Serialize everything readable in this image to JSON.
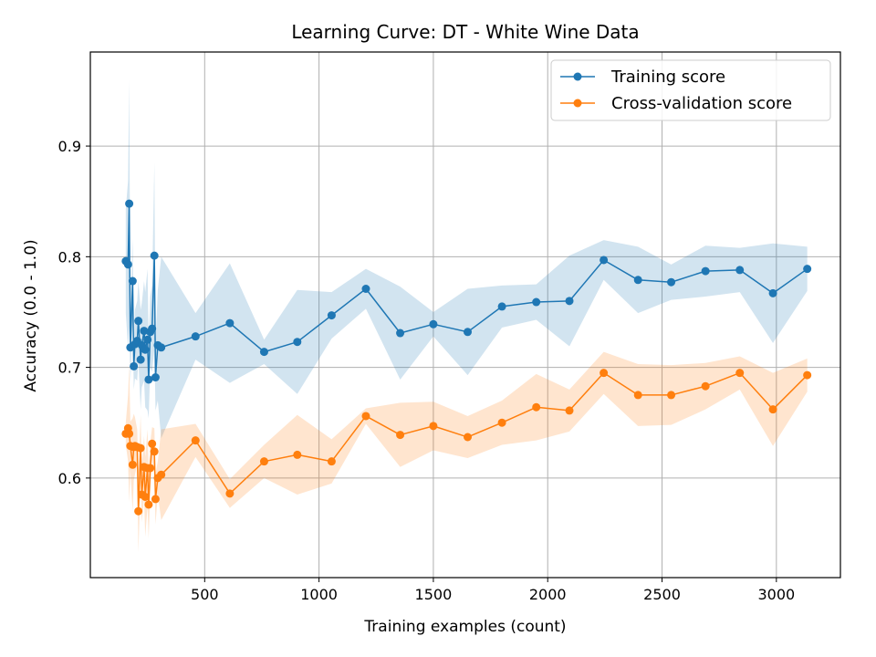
{
  "chart_data": {
    "type": "line",
    "title": "Learning Curve: DT - White Wine Data",
    "xlabel": "Training examples (count)",
    "ylabel": "Accuracy (0.0 - 1.0)",
    "xlim": [
      0,
      3280
    ],
    "ylim": [
      0.51,
      0.985
    ],
    "xticks": [
      500,
      1000,
      1500,
      2000,
      2500,
      3000
    ],
    "yticks": [
      0.6,
      0.7,
      0.8,
      0.9
    ],
    "grid": true,
    "legend_position": "upper-right",
    "series": [
      {
        "name": "Training score",
        "color": "#1f77b4",
        "points": [
          [
            155,
            0.796,
            0.749,
            0.843
          ],
          [
            165,
            0.793,
            0.717,
            0.869
          ],
          [
            170,
            0.848,
            0.736,
            0.96
          ],
          [
            175,
            0.718,
            0.686,
            0.75
          ],
          [
            185,
            0.778,
            0.74,
            0.816
          ],
          [
            190,
            0.701,
            0.68,
            0.722
          ],
          [
            195,
            0.721,
            0.69,
            0.752
          ],
          [
            205,
            0.724,
            0.688,
            0.76
          ],
          [
            210,
            0.742,
            0.706,
            0.778
          ],
          [
            220,
            0.707,
            0.662,
            0.752
          ],
          [
            225,
            0.72,
            0.682,
            0.758
          ],
          [
            235,
            0.733,
            0.688,
            0.778
          ],
          [
            240,
            0.716,
            0.664,
            0.768
          ],
          [
            250,
            0.725,
            0.661,
            0.789
          ],
          [
            255,
            0.689,
            0.654,
            0.724
          ],
          [
            262,
            0.732,
            0.7,
            0.764
          ],
          [
            270,
            0.735,
            0.696,
            0.774
          ],
          [
            280,
            0.801,
            0.717,
            0.885
          ],
          [
            285,
            0.691,
            0.661,
            0.721
          ],
          [
            295,
            0.72,
            0.67,
            0.77
          ],
          [
            310,
            0.718,
            0.636,
            0.8
          ],
          [
            460,
            0.728,
            0.707,
            0.749
          ],
          [
            610,
            0.74,
            0.686,
            0.794
          ],
          [
            760,
            0.714,
            0.703,
            0.725
          ],
          [
            905,
            0.723,
            0.676,
            0.77
          ],
          [
            1055,
            0.747,
            0.726,
            0.768
          ],
          [
            1205,
            0.771,
            0.753,
            0.789
          ],
          [
            1355,
            0.731,
            0.689,
            0.773
          ],
          [
            1500,
            0.739,
            0.728,
            0.75
          ],
          [
            1650,
            0.732,
            0.693,
            0.771
          ],
          [
            1800,
            0.755,
            0.736,
            0.774
          ],
          [
            1950,
            0.759,
            0.743,
            0.775
          ],
          [
            2095,
            0.76,
            0.719,
            0.801
          ],
          [
            2245,
            0.797,
            0.779,
            0.815
          ],
          [
            2395,
            0.779,
            0.749,
            0.809
          ],
          [
            2540,
            0.777,
            0.761,
            0.793
          ],
          [
            2690,
            0.787,
            0.764,
            0.81
          ],
          [
            2840,
            0.788,
            0.768,
            0.808
          ],
          [
            2985,
            0.767,
            0.722,
            0.812
          ],
          [
            3135,
            0.789,
            0.769,
            0.809
          ]
        ]
      },
      {
        "name": "Cross-validation score",
        "color": "#ff7f0e",
        "points": [
          [
            155,
            0.64,
            0.63,
            0.65
          ],
          [
            165,
            0.645,
            0.615,
            0.675
          ],
          [
            170,
            0.64,
            0.578,
            0.702
          ],
          [
            175,
            0.629,
            0.607,
            0.651
          ],
          [
            185,
            0.612,
            0.57,
            0.654
          ],
          [
            190,
            0.628,
            0.598,
            0.658
          ],
          [
            195,
            0.629,
            0.603,
            0.655
          ],
          [
            205,
            0.628,
            0.612,
            0.644
          ],
          [
            210,
            0.57,
            0.533,
            0.607
          ],
          [
            220,
            0.627,
            0.597,
            0.657
          ],
          [
            225,
            0.585,
            0.56,
            0.61
          ],
          [
            235,
            0.61,
            0.582,
            0.638
          ],
          [
            240,
            0.583,
            0.547,
            0.619
          ],
          [
            250,
            0.609,
            0.574,
            0.644
          ],
          [
            255,
            0.576,
            0.545,
            0.607
          ],
          [
            262,
            0.609,
            0.586,
            0.632
          ],
          [
            270,
            0.631,
            0.616,
            0.646
          ],
          [
            280,
            0.624,
            0.603,
            0.645
          ],
          [
            285,
            0.581,
            0.558,
            0.604
          ],
          [
            295,
            0.6,
            0.585,
            0.615
          ],
          [
            310,
            0.603,
            0.562,
            0.644
          ],
          [
            460,
            0.634,
            0.619,
            0.649
          ],
          [
            610,
            0.586,
            0.573,
            0.599
          ],
          [
            760,
            0.615,
            0.6,
            0.63
          ],
          [
            905,
            0.621,
            0.585,
            0.657
          ],
          [
            1055,
            0.615,
            0.595,
            0.635
          ],
          [
            1205,
            0.656,
            0.649,
            0.663
          ],
          [
            1355,
            0.639,
            0.61,
            0.668
          ],
          [
            1500,
            0.647,
            0.625,
            0.669
          ],
          [
            1650,
            0.637,
            0.618,
            0.656
          ],
          [
            1800,
            0.65,
            0.63,
            0.67
          ],
          [
            1950,
            0.664,
            0.634,
            0.694
          ],
          [
            2095,
            0.661,
            0.642,
            0.68
          ],
          [
            2245,
            0.695,
            0.676,
            0.714
          ],
          [
            2395,
            0.675,
            0.647,
            0.703
          ],
          [
            2540,
            0.675,
            0.648,
            0.702
          ],
          [
            2690,
            0.683,
            0.662,
            0.704
          ],
          [
            2840,
            0.695,
            0.68,
            0.71
          ],
          [
            2985,
            0.662,
            0.629,
            0.695
          ],
          [
            3135,
            0.693,
            0.678,
            0.708
          ]
        ]
      }
    ]
  }
}
